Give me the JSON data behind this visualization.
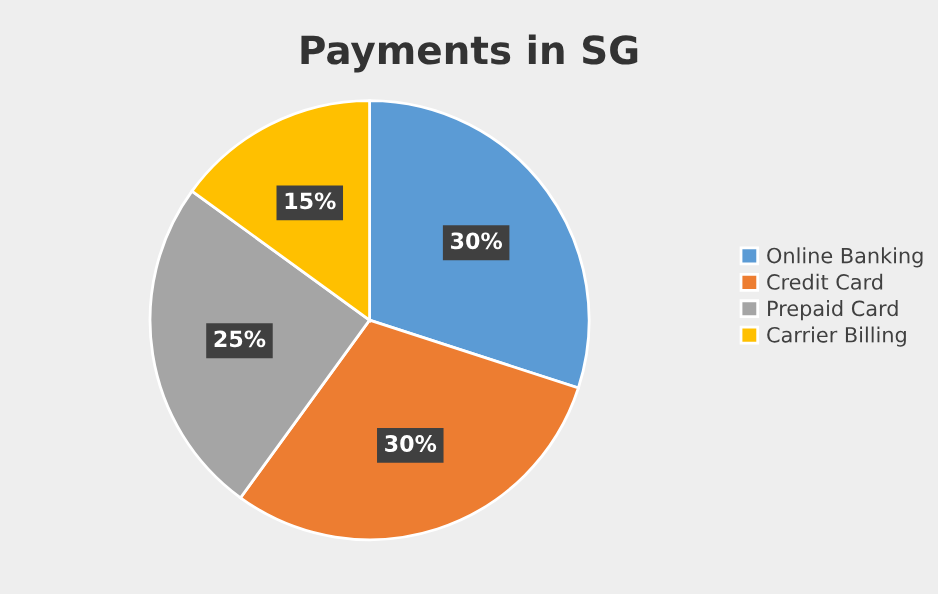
{
  "chart_data": {
    "type": "pie",
    "title": "Payments in SG",
    "categories": [
      "Online Banking",
      "Credit Card",
      "Prepaid Card",
      "Carrier Billing"
    ],
    "values": [
      30,
      30,
      25,
      15
    ],
    "colors": [
      "#5b9bd5",
      "#ed7d31",
      "#a5a5a5",
      "#ffc000"
    ],
    "value_labels": [
      "30%",
      "30%",
      "25%",
      "15%"
    ],
    "legend": "right"
  }
}
